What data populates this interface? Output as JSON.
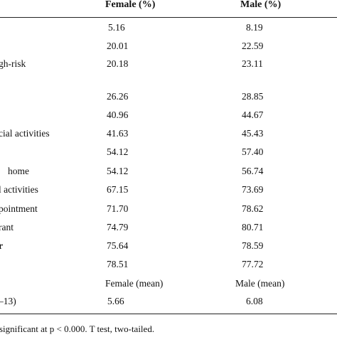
{
  "header": {
    "female": "Female (%)",
    "male": "Male (%)"
  },
  "rows": [
    {
      "label": "",
      "female": "5.16",
      "male": "8.19"
    },
    {
      "label": "",
      "female": "20.01",
      "male": "22.59"
    },
    {
      "label": "gh-risk",
      "female": "20.18",
      "male": "23.11"
    },
    {
      "label": "",
      "female": "26.26",
      "male": "28.85"
    },
    {
      "label": "",
      "female": "40.96",
      "male": "44.67"
    },
    {
      "label": "cial activities",
      "female": "41.63",
      "male": "45.43"
    },
    {
      "label": "",
      "female": "54.12",
      "male": "57.40"
    },
    {
      "label": "home",
      "female": "54.12",
      "male": "56.74"
    },
    {
      "label": "l activities",
      "female": "67.15",
      "male": "73.69"
    },
    {
      "label": "pointment",
      "female": "71.70",
      "male": "78.62"
    },
    {
      "label": "rant",
      "female": "74.79",
      "male": "80.71"
    },
    {
      "label": "r",
      "female": "75.64",
      "male": "78.59"
    },
    {
      "label": "",
      "female": "78.51",
      "male": "77.72"
    }
  ],
  "mean_header": {
    "female": "Female (mean)",
    "male": "Male (mean)"
  },
  "mean_row": {
    "label": "–13)",
    "female": "5.66",
    "male": "6.08"
  },
  "footnote": "significant at p < 0.000. T test, two-tailed."
}
